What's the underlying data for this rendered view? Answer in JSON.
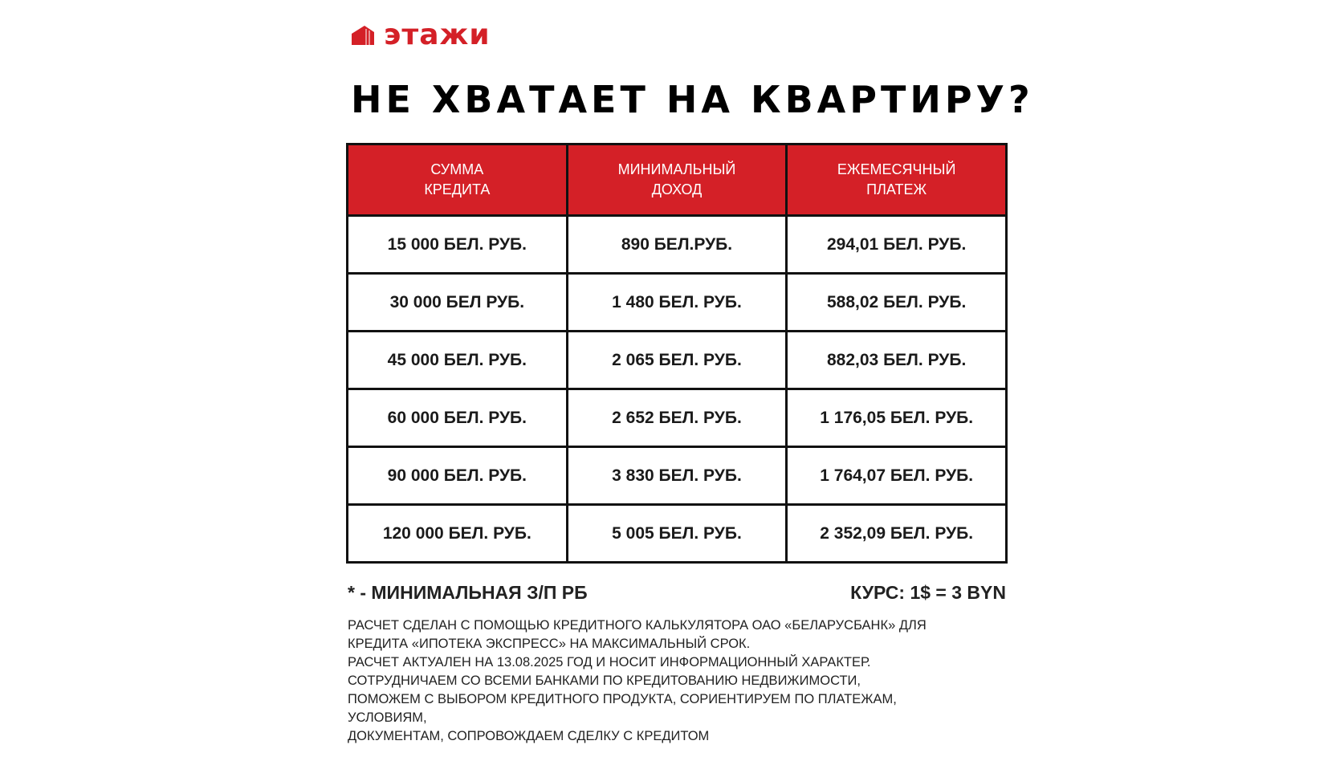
{
  "brand": {
    "name": "этажи",
    "color": "#d42027"
  },
  "title": "НЕ ХВАТАЕТ НА КВАРТИРУ?",
  "table": {
    "headers": [
      [
        "СУММА",
        "КРЕДИТА"
      ],
      [
        "МИНИМАЛЬНЫЙ",
        "ДОХОД"
      ],
      [
        "ЕЖЕМЕСЯЧНЫЙ",
        "ПЛАТЕЖ"
      ]
    ],
    "rows": [
      [
        "15 000 БЕЛ. РУБ.",
        "890 БЕЛ.РУБ.",
        "294,01 БЕЛ. РУБ."
      ],
      [
        "30 000 БЕЛ РУБ.",
        "1 480 БЕЛ. РУБ.",
        "588,02 БЕЛ. РУБ."
      ],
      [
        "45 000 БЕЛ. РУБ.",
        "2 065 БЕЛ. РУБ.",
        "882,03 БЕЛ. РУБ."
      ],
      [
        "60 000 БЕЛ. РУБ.",
        "2 652 БЕЛ. РУБ.",
        "1 176,05 БЕЛ. РУБ."
      ],
      [
        "90 000 БЕЛ. РУБ.",
        "3 830 БЕЛ. РУБ.",
        "1 764,07 БЕЛ. РУБ."
      ],
      [
        "120 000 БЕЛ. РУБ.",
        "5 005 БЕЛ. РУБ.",
        "2 352,09 БЕЛ. РУБ."
      ]
    ]
  },
  "notes": {
    "min_wage": "* - МИНИМАЛЬНАЯ З/П РБ",
    "rate": "КУРС: 1$ = 3 BYN"
  },
  "disclaimer": [
    "РАСЧЕТ СДЕЛАН С ПОМОЩЬЮ КРЕДИТНОГО КАЛЬКУЛЯТОРА ОАО «БЕЛАРУСБАНК» ДЛЯ",
    "КРЕДИТА «ИПОТЕКА ЭКСПРЕСС» НА МАКСИМАЛЬНЫЙ СРОК.",
    "РАСЧЕТ АКТУАЛЕН НА 13.08.2025 ГОД И НОСИТ ИНФОРМАЦИОННЫЙ ХАРАКТЕР.",
    "СОТРУДНИЧАЕМ СО ВСЕМИ БАНКАМИ ПО КРЕДИТОВАНИЮ НЕДВИЖИМОСТИ,",
    "ПОМОЖЕМ С ВЫБОРОМ КРЕДИТНОГО ПРОДУКТА, СОРИЕНТИРУЕМ ПО ПЛАТЕЖАМ,",
    "УСЛОВИЯМ,",
    "ДОКУМЕНТАМ, СОПРОВОЖДАЕМ СДЕЛКУ С КРЕДИТОМ"
  ]
}
